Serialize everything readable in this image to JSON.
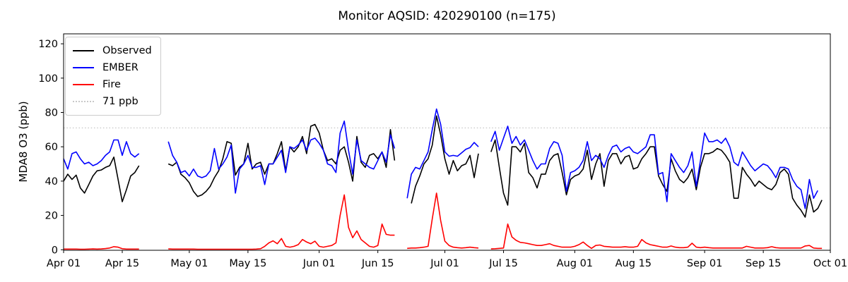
{
  "title": "Monitor AQSID: 420290100 (n=175)",
  "chart_data": {
    "type": "line",
    "title": "Monitor AQSID: 420290100 (n=175)",
    "xlabel": "",
    "ylabel": "MDA8 O3 (ppb)",
    "x_unit": "day index from Apr 01",
    "x_range_days": 183,
    "x_ticks": [
      {
        "day": 0,
        "label": "Apr 01"
      },
      {
        "day": 14,
        "label": "Apr 15"
      },
      {
        "day": 30,
        "label": "May 01"
      },
      {
        "day": 44,
        "label": "May 15"
      },
      {
        "day": 61,
        "label": "Jun 01"
      },
      {
        "day": 75,
        "label": "Jun 15"
      },
      {
        "day": 91,
        "label": "Jul 01"
      },
      {
        "day": 105,
        "label": "Jul 15"
      },
      {
        "day": 122,
        "label": "Aug 01"
      },
      {
        "day": 136,
        "label": "Aug 15"
      },
      {
        "day": 153,
        "label": "Sep 01"
      },
      {
        "day": 167,
        "label": "Sep 15"
      },
      {
        "day": 183,
        "label": "Oct 01"
      }
    ],
    "y_ticks": [
      0,
      20,
      40,
      60,
      80,
      100,
      120
    ],
    "ylim": [
      -0.3,
      125.8
    ],
    "grid": false,
    "legend_position": "upper-left",
    "ref_line": {
      "value": 71,
      "label": "71 ppb",
      "color": "#c9c9c9",
      "style": "dotted"
    },
    "frame_color": "#000000",
    "series": [
      {
        "name": "Observed",
        "color": "#000000",
        "values": [
          40,
          44,
          41,
          43.5,
          36,
          33,
          38,
          43,
          46,
          46.5,
          48,
          49,
          54,
          41,
          28,
          35,
          43,
          45,
          49,
          null,
          null,
          null,
          null,
          null,
          null,
          50,
          49,
          51,
          44,
          42,
          39,
          34,
          31,
          32,
          34,
          37,
          42,
          46,
          53,
          63,
          62,
          43.5,
          48,
          50,
          62,
          47,
          50,
          51,
          44,
          50,
          50,
          56,
          63,
          46,
          60,
          57,
          60,
          66,
          56,
          72,
          73,
          68,
          58,
          52,
          53,
          50,
          58,
          60,
          51,
          40,
          66,
          51,
          48,
          55,
          56,
          53,
          57,
          48,
          70,
          52,
          null,
          null,
          null,
          27,
          37,
          43,
          50,
          53,
          61,
          78,
          67,
          53,
          44,
          52,
          46,
          49,
          50,
          55,
          42,
          56,
          null,
          null,
          57,
          64,
          48,
          33,
          26,
          60,
          60,
          57,
          62,
          45,
          42,
          36,
          44,
          44,
          52,
          55,
          56,
          45,
          32,
          41,
          43,
          44,
          47,
          58,
          41,
          50,
          56,
          37,
          52,
          56,
          56,
          50,
          54,
          55,
          47,
          48,
          53,
          56,
          60,
          60,
          43,
          38,
          34,
          53,
          46,
          41,
          39,
          42,
          47,
          35,
          48,
          56,
          56,
          57,
          59,
          58,
          55,
          51,
          30,
          30,
          48,
          44,
          41,
          37,
          40,
          38,
          36,
          35,
          38,
          45,
          47,
          44,
          30,
          26,
          23,
          19,
          32,
          22,
          24,
          29
        ]
      },
      {
        "name": "EMBER",
        "color": "#0000ff",
        "values": [
          53,
          47,
          56,
          57,
          53,
          50,
          51,
          49,
          50,
          52,
          55,
          57,
          64,
          64,
          55,
          63,
          56,
          54,
          56,
          null,
          null,
          null,
          null,
          null,
          null,
          63,
          55,
          51,
          45,
          46,
          43,
          47,
          43,
          42,
          43,
          46,
          59,
          47,
          50,
          54,
          61,
          33,
          47,
          50,
          55,
          48,
          48,
          49,
          38,
          50,
          50,
          54,
          58,
          45,
          60,
          59,
          61,
          64,
          58,
          64,
          65,
          62,
          58,
          50,
          49,
          45,
          68,
          75,
          58,
          44,
          64,
          52,
          50,
          48,
          47,
          52,
          57,
          51,
          67,
          59,
          null,
          null,
          30,
          44,
          48,
          47,
          52,
          57,
          70,
          82,
          73,
          57,
          54.5,
          55,
          54.5,
          56.5,
          58.5,
          59.5,
          62.5,
          60,
          null,
          null,
          63,
          69,
          58,
          65,
          72,
          62,
          66,
          61,
          64,
          58,
          52,
          47,
          50,
          50,
          59,
          63,
          62,
          55,
          34,
          45,
          46,
          48,
          52,
          63,
          52,
          55,
          53,
          48,
          55,
          60,
          61,
          57,
          59,
          60,
          57,
          56,
          58,
          60,
          67,
          67,
          44,
          45,
          28,
          56,
          52,
          48,
          45,
          49,
          57,
          37,
          52,
          68,
          63,
          63,
          64,
          62,
          65,
          60,
          51,
          49,
          57,
          53,
          49,
          46,
          48,
          50,
          49,
          46,
          42,
          48,
          48,
          47,
          41,
          37,
          35,
          24,
          41,
          30,
          34.5,
          null
        ]
      },
      {
        "name": "Fire",
        "color": "#ff0000",
        "values": [
          0.4,
          0.4,
          0.4,
          0.4,
          0.3,
          0.3,
          0.4,
          0.5,
          0.4,
          0.5,
          0.7,
          1,
          1.8,
          1.5,
          0.6,
          0.4,
          0.4,
          0.4,
          0.4,
          null,
          null,
          null,
          null,
          null,
          null,
          0.5,
          0.4,
          0.4,
          0.4,
          0.4,
          0.4,
          0.4,
          0.3,
          0.3,
          0.3,
          0.3,
          0.3,
          0.3,
          0.3,
          0.3,
          0.3,
          0.3,
          0.3,
          0.3,
          0.3,
          0.3,
          0.4,
          0.6,
          2,
          4,
          5.2,
          3.5,
          6.5,
          2,
          1.5,
          2,
          3,
          6,
          4.5,
          3.5,
          5,
          2,
          1.5,
          2,
          2.5,
          4,
          20,
          32,
          13,
          7,
          11,
          6,
          4,
          2,
          1.5,
          2.5,
          15,
          9,
          8.5,
          8.5,
          null,
          null,
          0.8,
          1,
          1,
          1.2,
          1.5,
          2,
          18,
          33,
          17,
          5,
          2.5,
          1.5,
          1.2,
          1,
          1.2,
          1.5,
          1.2,
          1,
          null,
          null,
          0.5,
          0.6,
          0.8,
          1,
          15,
          7.5,
          5.5,
          4.3,
          4,
          3.5,
          3,
          2.5,
          2.5,
          3,
          3.5,
          2.5,
          2,
          1.5,
          1.5,
          1.5,
          2,
          3,
          4.5,
          2.5,
          0.8,
          2.5,
          2.8,
          2,
          1.8,
          1.5,
          1.5,
          1.5,
          1.8,
          1.5,
          1.5,
          2,
          6,
          4,
          3,
          2.5,
          2,
          1.5,
          1.5,
          2.2,
          1.5,
          1.2,
          1.2,
          1.5,
          3.8,
          1.5,
          1.2,
          1.5,
          1.2,
          1,
          1,
          1,
          1,
          1,
          1,
          1,
          1,
          2,
          1.5,
          1,
          1,
          1,
          1.2,
          1.8,
          1.2,
          1,
          1,
          1,
          1,
          1,
          1,
          2.2,
          2.5,
          1,
          0.8,
          0.8
        ]
      }
    ]
  }
}
